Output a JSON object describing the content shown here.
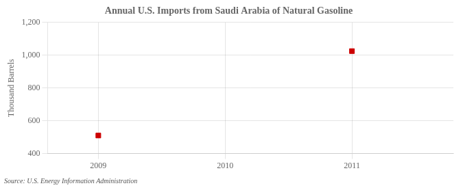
{
  "chart_data": {
    "type": "scatter",
    "title": "Annual U.S. Imports from Saudi Arabia of Natural Gasoline",
    "ylabel": "Thousand Barrels",
    "annotation": "Source: U.S. Energy Information Administration",
    "x": [
      2009,
      2011
    ],
    "values": [
      510,
      1025
    ],
    "color": "#cc0000",
    "marker": "square",
    "xlim": [
      2008.6,
      2011.8
    ],
    "xticks": [
      2009,
      2010,
      2011
    ],
    "ylim": [
      400,
      1200
    ],
    "yticks": [
      400,
      600,
      800,
      {
        "value": 1000,
        "label": "1,000"
      },
      {
        "value": 1200,
        "label": "1,200"
      }
    ],
    "grid": true
  }
}
